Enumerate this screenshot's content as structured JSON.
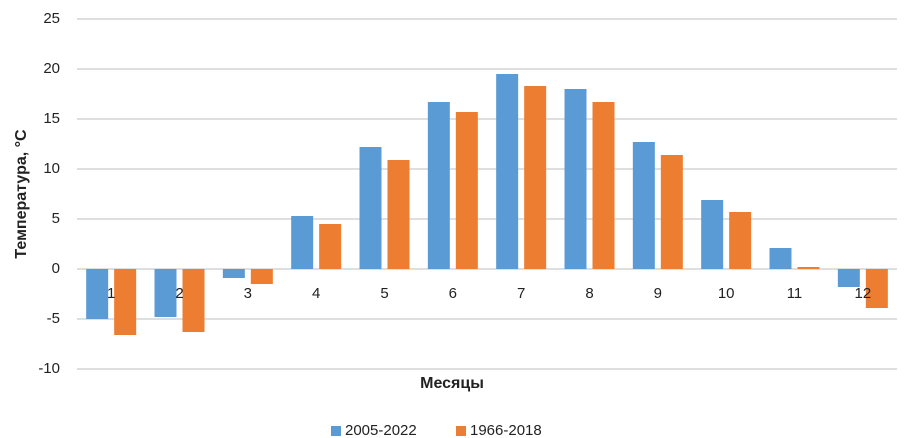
{
  "chart_data": {
    "type": "bar",
    "x_label": "Месяцы",
    "y_label": "Температура, °С",
    "categories": [
      "1",
      "2",
      "3",
      "4",
      "5",
      "6",
      "7",
      "8",
      "9",
      "10",
      "11",
      "12"
    ],
    "series": [
      {
        "name": "2005-2022",
        "color": "#5b9bd5",
        "values": [
          -5.0,
          -4.8,
          -0.9,
          5.3,
          12.2,
          16.7,
          19.5,
          18.0,
          12.7,
          6.9,
          2.1,
          -1.8
        ]
      },
      {
        "name": "1966-2018",
        "color": "#ed7d31",
        "values": [
          -6.6,
          -6.3,
          -1.5,
          4.5,
          10.9,
          15.7,
          18.3,
          16.7,
          11.4,
          5.7,
          0.2,
          -3.9
        ]
      }
    ],
    "ylim": [
      -10,
      25
    ],
    "yticks": [
      -10,
      -5,
      0,
      5,
      10,
      15,
      20,
      25
    ],
    "grid": true,
    "legend": "bottom"
  }
}
